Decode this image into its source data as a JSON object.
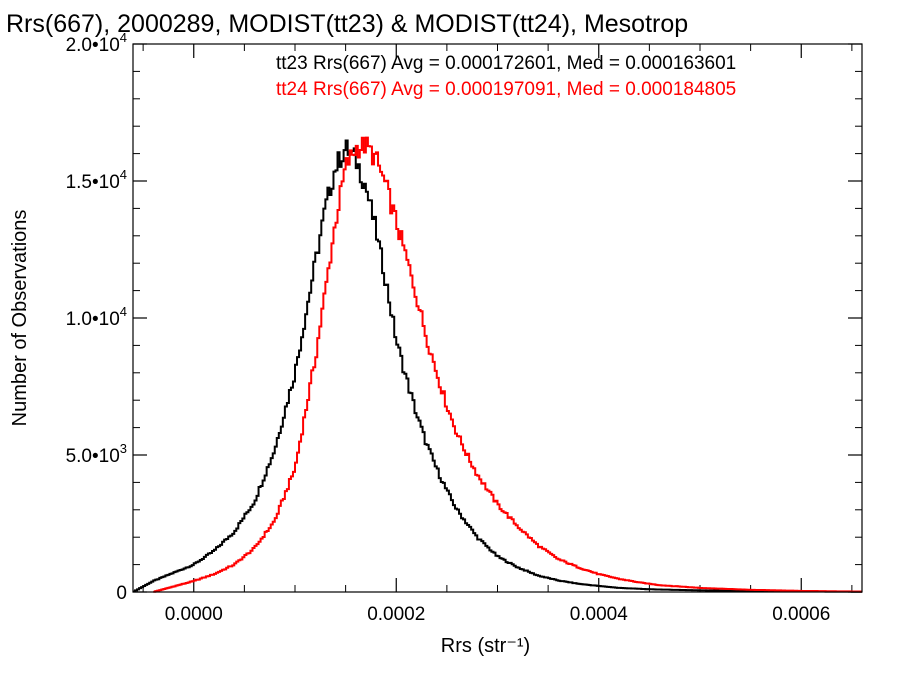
{
  "chart_data": {
    "type": "line",
    "title": "Rrs(667), 2000289, MODIST(tt23) & MODIST(tt24), Mesotrop",
    "xlabel": "Rrs (str⁻¹)",
    "ylabel": "Number of Observations",
    "xlim": [
      -6e-05,
      0.00066
    ],
    "ylim": [
      0,
      20000
    ],
    "x_ticks": [
      {
        "value": 0.0,
        "label": "0.0000"
      },
      {
        "value": 0.0002,
        "label": "0.0002"
      },
      {
        "value": 0.0004,
        "label": "0.0004"
      },
      {
        "value": 0.0006,
        "label": "0.0006"
      }
    ],
    "y_ticks": [
      {
        "value": 0,
        "label": "0"
      },
      {
        "value": 5000,
        "mant": "5.0•10",
        "exp": "3"
      },
      {
        "value": 10000,
        "mant": "1.0•10",
        "exp": "4"
      },
      {
        "value": 15000,
        "mant": "1.5•10",
        "exp": "4"
      },
      {
        "value": 20000,
        "mant": "2.0•10",
        "exp": "4"
      }
    ],
    "annotations": [
      {
        "text": "tt23 Rrs(667) Avg = 0.000172601, Med = 0.000163601",
        "color": "#000000"
      },
      {
        "text": "tt24 Rrs(667) Avg = 0.000197091, Med = 0.000184805",
        "color": "#ff0000"
      }
    ],
    "series": [
      {
        "color": "#000000",
        "x": [
          -6e-05,
          -4e-05,
          -2e-05,
          0.0,
          2e-05,
          4e-05,
          6e-05,
          8e-05,
          0.0001,
          0.00011,
          0.00012,
          0.00013,
          0.00014,
          0.00015,
          0.00016,
          0.00017,
          0.00018,
          0.00019,
          0.0002,
          0.00021,
          0.00022,
          0.00023,
          0.00024,
          0.00025,
          0.00026,
          0.00028,
          0.0003,
          0.00032,
          0.00034,
          0.00036,
          0.00038,
          0.0004,
          0.00042,
          0.00045,
          0.0005,
          0.00055,
          0.0006,
          0.00066
        ],
        "y": [
          0,
          400,
          700,
          1000,
          1500,
          2200,
          3300,
          5200,
          8000,
          10000,
          12000,
          14000,
          15500,
          16200,
          15800,
          14800,
          13200,
          11300,
          9200,
          7800,
          6500,
          5400,
          4500,
          3700,
          3000,
          2000,
          1300,
          900,
          600,
          420,
          300,
          220,
          150,
          100,
          60,
          40,
          20,
          10
        ]
      },
      {
        "color": "#ff0000",
        "x": [
          -4e-05,
          -2e-05,
          0.0,
          2e-05,
          4e-05,
          6e-05,
          8e-05,
          0.0001,
          0.00012,
          0.00013,
          0.00014,
          0.00015,
          0.00016,
          0.00017,
          0.00018,
          0.00019,
          0.0002,
          0.00021,
          0.00022,
          0.00023,
          0.00024,
          0.00025,
          0.00026,
          0.00027,
          0.00028,
          0.0003,
          0.00032,
          0.00034,
          0.00036,
          0.00038,
          0.0004,
          0.00042,
          0.00044,
          0.00046,
          0.0005,
          0.00055,
          0.0006,
          0.00066
        ],
        "y": [
          0,
          200,
          400,
          650,
          1000,
          1600,
          2600,
          4500,
          8500,
          11000,
          13500,
          15500,
          16200,
          16300,
          15800,
          14800,
          13500,
          12200,
          10800,
          9300,
          8000,
          6800,
          5800,
          5000,
          4300,
          3200,
          2400,
          1700,
          1200,
          900,
          650,
          480,
          350,
          250,
          150,
          80,
          40,
          15
        ]
      }
    ]
  }
}
